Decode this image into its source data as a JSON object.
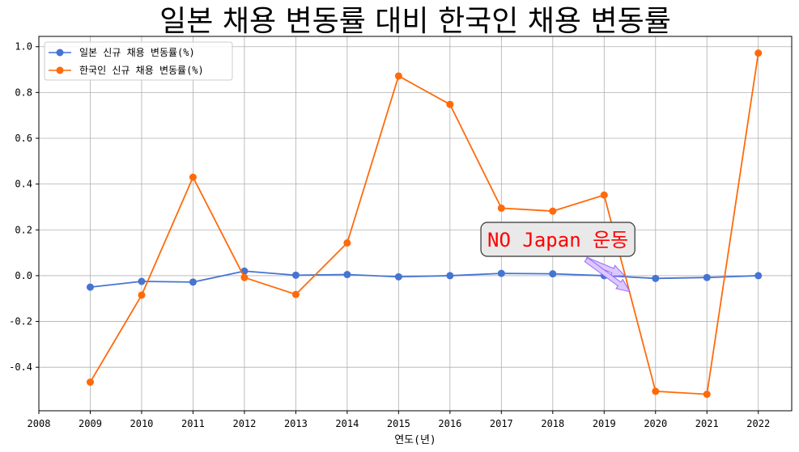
{
  "chart_data": {
    "type": "line",
    "title": "일본 채용 변동률 대비 한국인 채용 변동률",
    "xlabel": "연도(년)",
    "ylabel": "",
    "xlim": [
      2008,
      2022.65
    ],
    "ylim": [
      -0.59,
      1.045
    ],
    "xticks": [
      2008,
      2009,
      2010,
      2011,
      2012,
      2013,
      2014,
      2015,
      2016,
      2017,
      2018,
      2019,
      2020,
      2021,
      2022
    ],
    "yticks": [
      -0.4,
      -0.2,
      0.0,
      0.2,
      0.4,
      0.6,
      0.8,
      1.0
    ],
    "grid": true,
    "legend_position": "top-left",
    "x": [
      2009,
      2010,
      2011,
      2012,
      2013,
      2014,
      2015,
      2016,
      2017,
      2018,
      2019,
      2020,
      2021,
      2022
    ],
    "series": [
      {
        "name": "일본 신규 채용 변동률(%)",
        "color": "#4674d2",
        "values": [
          -0.05,
          -0.025,
          -0.028,
          0.02,
          0.002,
          0.005,
          -0.005,
          0.0,
          0.01,
          0.008,
          0.0,
          -0.012,
          -0.008,
          0.0
        ]
      },
      {
        "name": "한국인 신규 채용 변동률(%)",
        "color": "#ff6a0a",
        "values": [
          -0.465,
          -0.085,
          0.43,
          -0.008,
          -0.082,
          0.143,
          0.872,
          0.748,
          0.295,
          0.282,
          0.352,
          -0.505,
          -0.518,
          0.972
        ]
      }
    ],
    "annotation": {
      "text": "NO Japan 운동",
      "text_color": "#ff0000",
      "box_fill": "#e9e9e9",
      "box_edge": "#333333",
      "arrow_fill": "#dcc9ff",
      "arrow_edge": "#9a66ff",
      "text_anchor": [
        2018.1,
        0.155
      ],
      "arrow_tails": [
        [
          2018.65,
          0.07
        ],
        [
          2018.65,
          0.07
        ]
      ],
      "arrow_heads": [
        [
          2019.4,
          0.0
        ],
        [
          2019.5,
          -0.07
        ]
      ]
    }
  }
}
